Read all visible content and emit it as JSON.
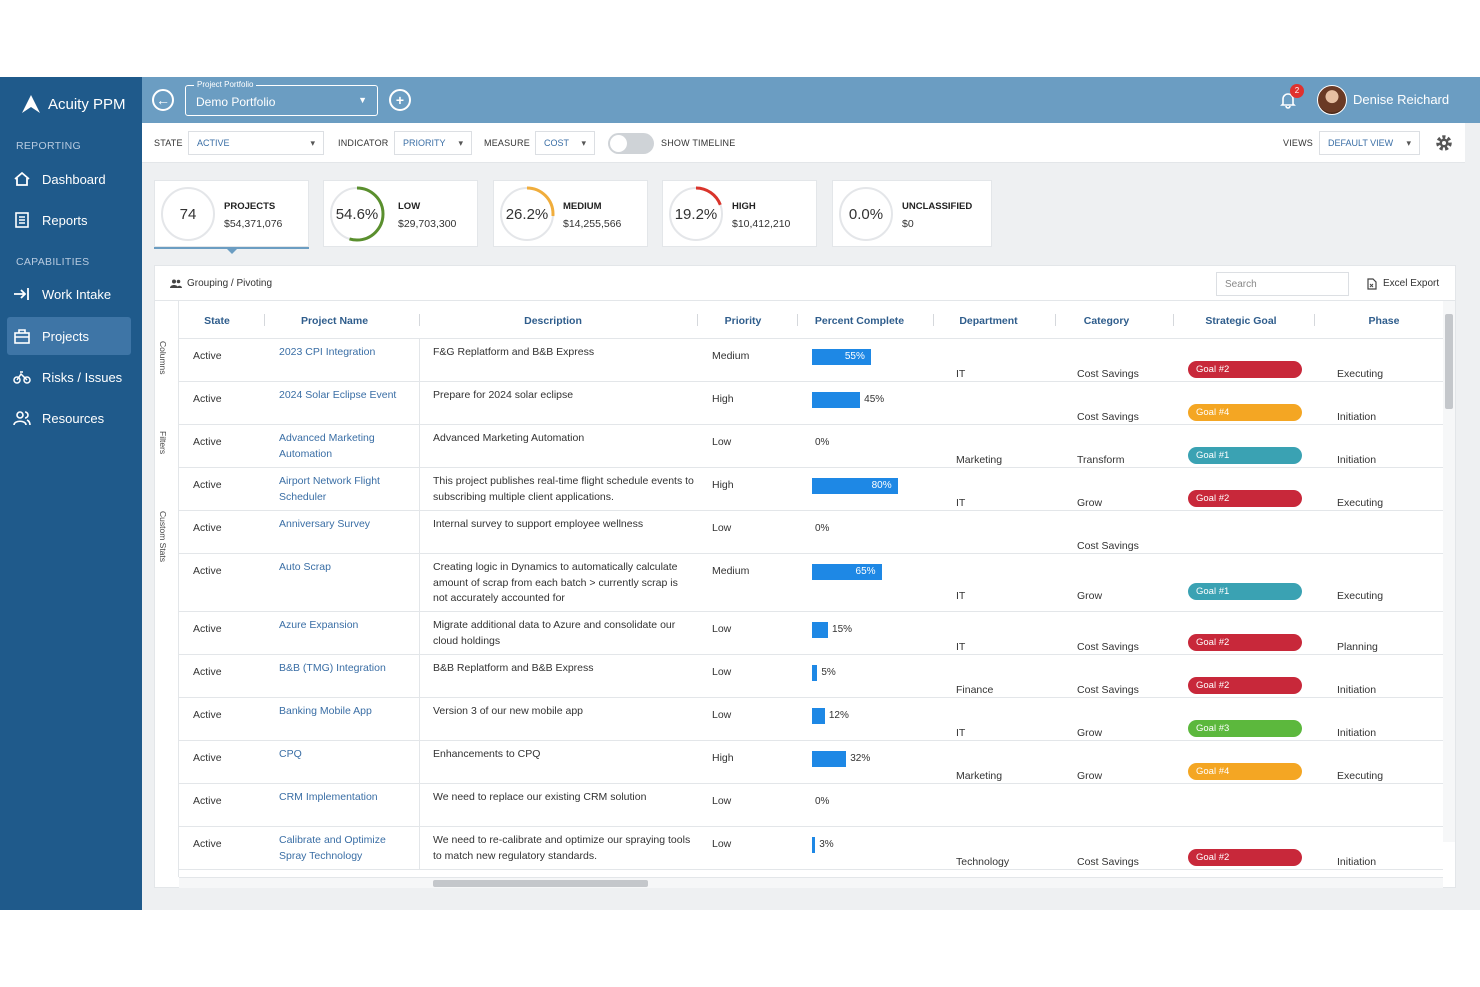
{
  "sidebar": {
    "app_name": "Acuity PPM",
    "section_reporting": "REPORTING",
    "section_capabilities": "CAPABILITIES",
    "items": [
      {
        "label": "Dashboard",
        "icon": "home-icon"
      },
      {
        "label": "Reports",
        "icon": "list-icon"
      },
      {
        "label": "Work Intake",
        "icon": "arrow-in-icon"
      },
      {
        "label": "Projects",
        "icon": "briefcase-icon"
      },
      {
        "label": "Risks / Issues",
        "icon": "bike-icon"
      },
      {
        "label": "Resources",
        "icon": "people-icon"
      }
    ]
  },
  "topbar": {
    "portfolio_label": "Project Portfolio",
    "portfolio_value": "Demo Portfolio",
    "notification_count": "2",
    "user_name": "Denise Reichard"
  },
  "filters": {
    "state_label": "STATE",
    "state_value": "ACTIVE",
    "indicator_label": "INDICATOR",
    "indicator_value": "PRIORITY",
    "measure_label": "MEASURE",
    "measure_value": "COST",
    "timeline_label": "SHOW TIMELINE",
    "views_label": "VIEWS",
    "views_value": "DEFAULT VIEW"
  },
  "stats": [
    {
      "ring": "74",
      "title": "PROJECTS",
      "value": "$54,371,076",
      "pct": 0,
      "color": "#d0d3d7"
    },
    {
      "ring": "54.6%",
      "title": "LOW",
      "value": "$29,703,300",
      "pct": 54.6,
      "color": "#5a8f2e"
    },
    {
      "ring": "26.2%",
      "title": "MEDIUM",
      "value": "$14,255,566",
      "pct": 26.2,
      "color": "#f0ad3c"
    },
    {
      "ring": "19.2%",
      "title": "HIGH",
      "value": "$10,412,210",
      "pct": 19.2,
      "color": "#d9342b"
    },
    {
      "ring": "0.0%",
      "title": "UNCLASSIFIED",
      "value": "$0",
      "pct": 0,
      "color": "#d0d3d7"
    }
  ],
  "grid": {
    "grouping_label": "Grouping / Pivoting",
    "search_placeholder": "Search",
    "export_label": "Excel Export",
    "side_tabs": [
      "Columns",
      "Filters",
      "Custom Stats"
    ],
    "columns": [
      "State",
      "Project Name",
      "Description",
      "Priority",
      "Percent Complete",
      "Department",
      "Category",
      "Strategic Goal",
      "Phase"
    ],
    "rows": [
      {
        "state": "Active",
        "name": "2023 CPI Integration",
        "desc": "F&G Replatform and B&B Express",
        "priority": "Medium",
        "pct": 55,
        "pct_label": "55%",
        "dept": "IT",
        "cat": "Cost Savings",
        "goal": "Goal #2",
        "goal_color": "#c8283a",
        "phase": "Executing"
      },
      {
        "state": "Active",
        "name": "2024 Solar Eclipse Event",
        "desc": "Prepare for 2024 solar eclipse",
        "priority": "High",
        "pct": 45,
        "pct_label": "45%",
        "dept": "",
        "cat": "Cost Savings",
        "goal": "Goal #4",
        "goal_color": "#f4a623",
        "phase": "Initiation"
      },
      {
        "state": "Active",
        "name": "Advanced Marketing Automation",
        "desc": "Advanced Marketing Automation",
        "priority": "Low",
        "pct": 0,
        "pct_label": "0%",
        "dept": "Marketing",
        "cat": "Transform",
        "goal": "Goal #1",
        "goal_color": "#3aa2b3",
        "phase": "Initiation"
      },
      {
        "state": "Active",
        "name": "Airport Network Flight Scheduler",
        "desc": "This project publishes real-time flight schedule events to subscribing multiple client applications.",
        "priority": "High",
        "pct": 80,
        "pct_label": "80%",
        "dept": "IT",
        "cat": "Grow",
        "goal": "Goal #2",
        "goal_color": "#c8283a",
        "phase": "Executing"
      },
      {
        "state": "Active",
        "name": "Anniversary Survey",
        "desc": "Internal survey to support employee wellness",
        "priority": "Low",
        "pct": 0,
        "pct_label": "0%",
        "dept": "",
        "cat": "Cost Savings",
        "goal": "",
        "goal_color": "",
        "phase": ""
      },
      {
        "state": "Active",
        "name": "Auto Scrap",
        "desc": "Creating logic in Dynamics to automatically calculate amount of scrap from each batch > currently scrap is not accurately accounted for",
        "priority": "Medium",
        "pct": 65,
        "pct_label": "65%",
        "dept": "IT",
        "cat": "Grow",
        "goal": "Goal #1",
        "goal_color": "#3aa2b3",
        "phase": "Executing"
      },
      {
        "state": "Active",
        "name": "Azure Expansion",
        "desc": "Migrate additional data to Azure and consolidate our cloud holdings",
        "priority": "Low",
        "pct": 15,
        "pct_label": "15%",
        "dept": "IT",
        "cat": "Cost Savings",
        "goal": "Goal #2",
        "goal_color": "#c8283a",
        "phase": "Planning"
      },
      {
        "state": "Active",
        "name": "B&B (TMG) Integration",
        "desc": "B&B Replatform and B&B Express",
        "priority": "Low",
        "pct": 5,
        "pct_label": "5%",
        "dept": "Finance",
        "cat": "Cost Savings",
        "goal": "Goal #2",
        "goal_color": "#c8283a",
        "phase": "Initiation"
      },
      {
        "state": "Active",
        "name": "Banking Mobile App",
        "desc": "Version 3 of our new mobile app",
        "priority": "Low",
        "pct": 12,
        "pct_label": "12%",
        "dept": "IT",
        "cat": "Grow",
        "goal": "Goal #3",
        "goal_color": "#5cb83d",
        "phase": "Initiation"
      },
      {
        "state": "Active",
        "name": "CPQ",
        "desc": "Enhancements to CPQ",
        "priority": "High",
        "pct": 32,
        "pct_label": "32%",
        "dept": "Marketing",
        "cat": "Grow",
        "goal": "Goal #4",
        "goal_color": "#f4a623",
        "phase": "Executing"
      },
      {
        "state": "Active",
        "name": "CRM Implementation",
        "desc": "We need to replace our existing CRM solution",
        "priority": "Low",
        "pct": 0,
        "pct_label": "0%",
        "dept": "",
        "cat": "",
        "goal": "",
        "goal_color": "",
        "phase": ""
      },
      {
        "state": "Active",
        "name": "Calibrate and Optimize Spray Technology",
        "desc": "We need to re-calibrate and optimize our spraying tools to match new regulatory standards.",
        "priority": "Low",
        "pct": 3,
        "pct_label": "3%",
        "dept": "Technology",
        "cat": "Cost Savings",
        "goal": "Goal #2",
        "goal_color": "#c8283a",
        "phase": "Initiation"
      }
    ]
  }
}
